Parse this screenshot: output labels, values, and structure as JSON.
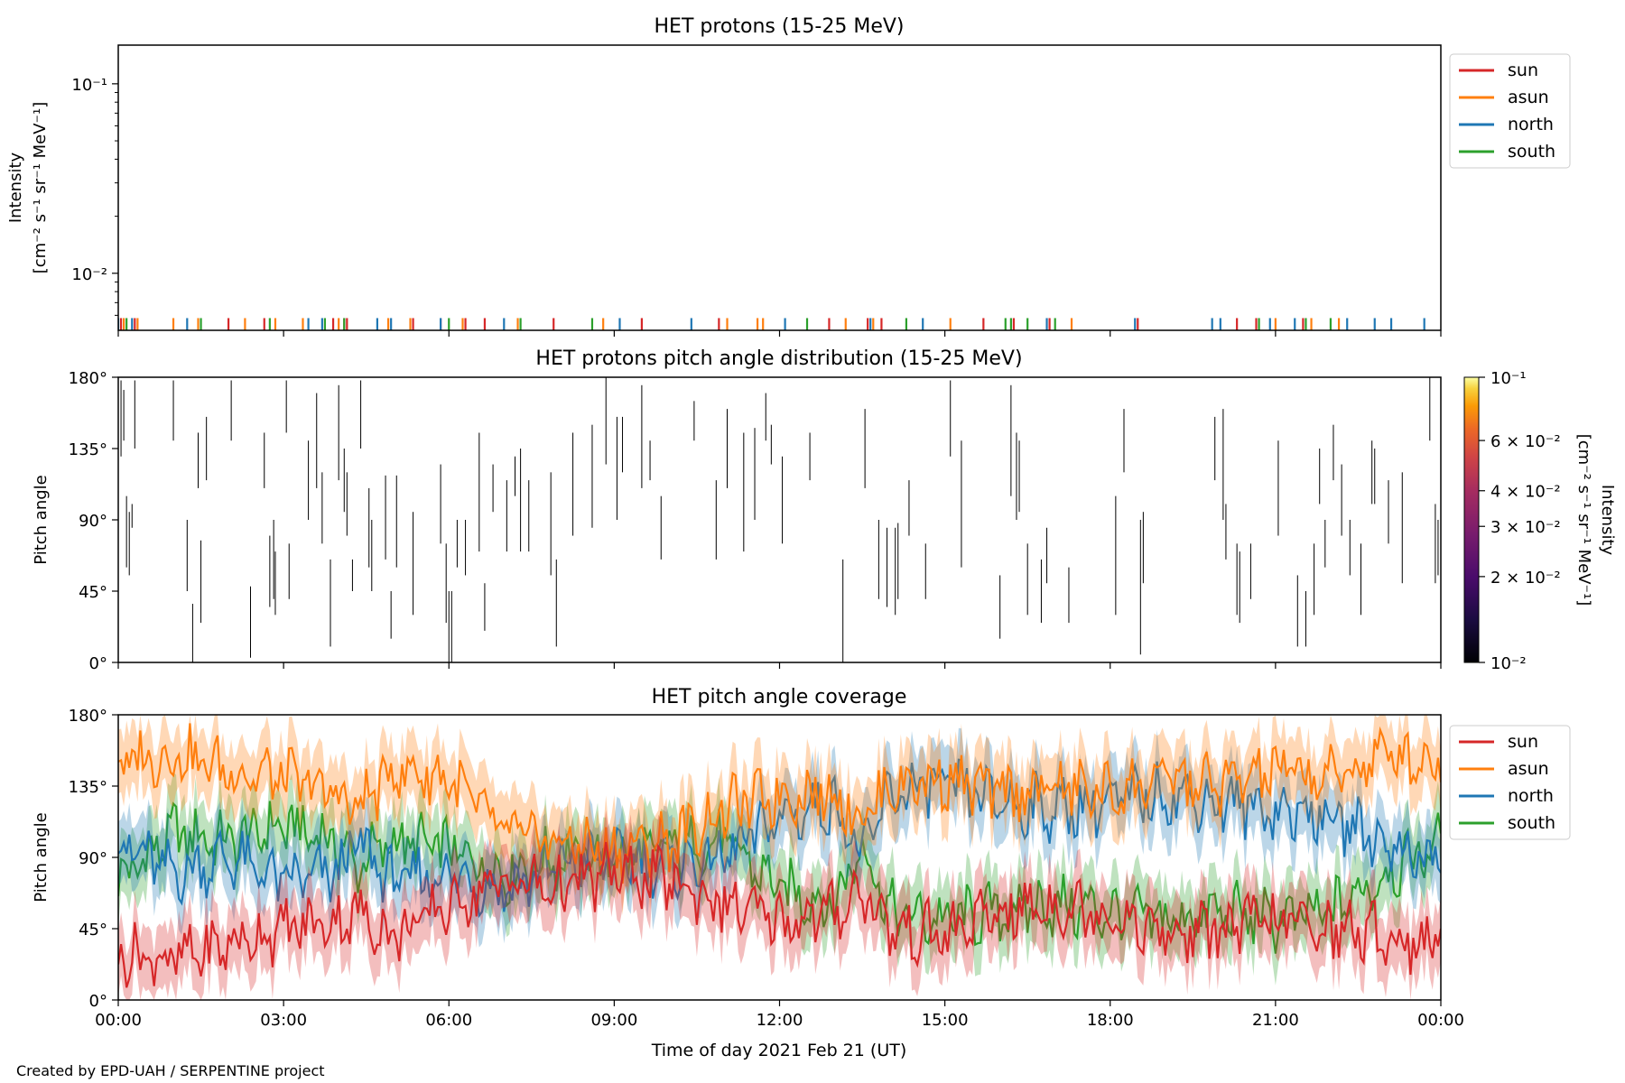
{
  "figure": {
    "credit": "Created by EPD-UAH / SERPENTINE project",
    "xlabel": "Time of day 2021 Feb 21 (UT)",
    "xticks": [
      "00:00",
      "03:00",
      "06:00",
      "09:00",
      "12:00",
      "15:00",
      "18:00",
      "21:00",
      "00:00"
    ]
  },
  "colors": {
    "sun": "#d62728",
    "asun": "#ff7f0e",
    "north": "#1f77b4",
    "south": "#2ca02c"
  },
  "chart_data": [
    {
      "type": "line",
      "title": "HET protons (15-25 MeV)",
      "ylabel_line1": "Intensity",
      "ylabel_line2": "[cm⁻² s⁻¹ sr⁻¹ MeV⁻¹]",
      "yscale": "log",
      "ylim": [
        0.005,
        0.16
      ],
      "ytick_labels": [
        "10⁻¹",
        "10⁻²"
      ],
      "ytick_values": [
        0.1,
        0.01
      ],
      "xlim_hours": [
        0,
        24
      ],
      "legend": {
        "placement": "outside-top-right",
        "entries": [
          "sun",
          "asun",
          "north",
          "south"
        ]
      },
      "note": "sparse single-count spikes near plot floor",
      "spikes": {
        "sun": [
          0.05,
          0.3,
          2.0,
          2.65,
          3.9,
          4.1,
          4.15,
          5.35,
          5.85,
          6.3,
          6.65,
          7.9,
          9.5,
          10.9,
          12.9,
          13.6,
          13.85,
          15.7,
          16.25,
          16.9,
          18.5,
          20.3,
          20.65,
          21.5
        ],
        "asun": [
          0.1,
          0.35,
          1.0,
          1.45,
          2.3,
          2.85,
          3.35,
          4.0,
          4.9,
          5.3,
          6.25,
          7.25,
          8.8,
          11.05,
          11.6,
          11.7,
          13.2,
          13.7,
          15.1,
          17.3,
          21.0,
          21.65,
          22.15
        ],
        "north": [
          0.0,
          0.25,
          1.25,
          3.45,
          3.7,
          4.7,
          4.95,
          5.85,
          7.0,
          9.1,
          10.4,
          12.1,
          13.65,
          14.6,
          16.85,
          18.45,
          19.85,
          20.0,
          20.9,
          21.35,
          22.3,
          22.8,
          23.1,
          23.7
        ],
        "south": [
          0.15,
          1.5,
          2.75,
          3.75,
          4.1,
          6.0,
          7.3,
          8.6,
          12.5,
          14.3,
          16.1,
          16.2,
          16.5,
          17.0,
          20.7,
          21.55,
          22.0
        ]
      }
    },
    {
      "type": "heatmap",
      "title": "HET protons pitch angle distribution (15-25 MeV)",
      "ylabel": "Pitch angle",
      "ylim": [
        0,
        180
      ],
      "ytick_labels": [
        "0°",
        "45°",
        "90°",
        "135°",
        "180°"
      ],
      "xlim_hours": [
        0,
        24
      ],
      "colorbar": {
        "label_line1": "Intensity",
        "label_line2": "[cm⁻² s⁻¹ sr⁻¹ MeV⁻¹]",
        "colormap": "inferno",
        "scale": "log",
        "range": [
          0.01,
          0.1
        ],
        "tick_labels": [
          "10⁻¹",
          "6 × 10⁻²",
          "4 × 10⁻²",
          "3 × 10⁻²",
          "2 × 10⁻²",
          "10⁻²"
        ],
        "tick_values": [
          0.1,
          0.06,
          0.04,
          0.03,
          0.02,
          0.01
        ]
      },
      "segments": [
        [
          0.05,
          130,
          178
        ],
        [
          0.1,
          140,
          172
        ],
        [
          0.15,
          60,
          105
        ],
        [
          0.2,
          55,
          95
        ],
        [
          0.25,
          85,
          100
        ],
        [
          0.3,
          135,
          178
        ],
        [
          1.0,
          140,
          178
        ],
        [
          1.25,
          45,
          90
        ],
        [
          1.35,
          0,
          37
        ],
        [
          1.5,
          25,
          77
        ],
        [
          1.45,
          110,
          145
        ],
        [
          1.6,
          115,
          155
        ],
        [
          2.05,
          140,
          178
        ],
        [
          2.4,
          3,
          48
        ],
        [
          2.65,
          110,
          145
        ],
        [
          2.75,
          35,
          80
        ],
        [
          2.82,
          40,
          90
        ],
        [
          2.85,
          30,
          70
        ],
        [
          3.05,
          145,
          178
        ],
        [
          3.1,
          40,
          75
        ],
        [
          3.45,
          90,
          140
        ],
        [
          3.6,
          110,
          170
        ],
        [
          3.7,
          75,
          120
        ],
        [
          3.85,
          10,
          65
        ],
        [
          4.0,
          115,
          175
        ],
        [
          4.1,
          95,
          135
        ],
        [
          4.15,
          80,
          120
        ],
        [
          4.25,
          45,
          65
        ],
        [
          4.4,
          135,
          178
        ],
        [
          4.55,
          60,
          110
        ],
        [
          4.6,
          45,
          90
        ],
        [
          4.85,
          65,
          118
        ],
        [
          4.95,
          15,
          45
        ],
        [
          5.05,
          60,
          118
        ],
        [
          5.35,
          30,
          95
        ],
        [
          5.85,
          75,
          125
        ],
        [
          5.95,
          25,
          75
        ],
        [
          6.0,
          0,
          45
        ],
        [
          6.05,
          0,
          45
        ],
        [
          6.15,
          60,
          90
        ],
        [
          6.3,
          55,
          90
        ],
        [
          6.55,
          70,
          145
        ],
        [
          6.65,
          20,
          50
        ],
        [
          6.8,
          95,
          125
        ],
        [
          7.05,
          70,
          115
        ],
        [
          7.2,
          105,
          130
        ],
        [
          7.3,
          70,
          135
        ],
        [
          7.45,
          70,
          115
        ],
        [
          7.85,
          55,
          120
        ],
        [
          7.95,
          10,
          65
        ],
        [
          8.25,
          80,
          145
        ],
        [
          8.6,
          85,
          150
        ],
        [
          8.85,
          125,
          180
        ],
        [
          9.05,
          90,
          155
        ],
        [
          9.15,
          120,
          155
        ],
        [
          9.5,
          110,
          175
        ],
        [
          9.65,
          115,
          140
        ],
        [
          9.85,
          65,
          105
        ],
        [
          10.45,
          140,
          165
        ],
        [
          10.85,
          65,
          115
        ],
        [
          11.05,
          110,
          160
        ],
        [
          11.35,
          70,
          145
        ],
        [
          11.55,
          90,
          148
        ],
        [
          11.75,
          140,
          170
        ],
        [
          11.85,
          125,
          150
        ],
        [
          12.05,
          75,
          130
        ],
        [
          12.55,
          115,
          145
        ],
        [
          13.15,
          0,
          65
        ],
        [
          13.55,
          110,
          160
        ],
        [
          13.8,
          40,
          90
        ],
        [
          13.95,
          35,
          85
        ],
        [
          14.1,
          30,
          85
        ],
        [
          14.15,
          40,
          88
        ],
        [
          14.35,
          80,
          115
        ],
        [
          14.65,
          40,
          75
        ],
        [
          15.1,
          130,
          178
        ],
        [
          15.3,
          60,
          140
        ],
        [
          16.0,
          15,
          55
        ],
        [
          16.2,
          105,
          175
        ],
        [
          16.3,
          90,
          145
        ],
        [
          16.35,
          95,
          140
        ],
        [
          16.5,
          30,
          75
        ],
        [
          16.75,
          25,
          65
        ],
        [
          16.85,
          50,
          85
        ],
        [
          17.25,
          25,
          60
        ],
        [
          18.1,
          30,
          105
        ],
        [
          18.25,
          120,
          160
        ],
        [
          18.55,
          5,
          90
        ],
        [
          18.6,
          50,
          95
        ],
        [
          19.9,
          115,
          155
        ],
        [
          20.05,
          90,
          160
        ],
        [
          20.1,
          65,
          100
        ],
        [
          20.3,
          30,
          75
        ],
        [
          20.35,
          25,
          70
        ],
        [
          20.55,
          40,
          75
        ],
        [
          21.05,
          80,
          140
        ],
        [
          21.4,
          10,
          55
        ],
        [
          21.55,
          10,
          45
        ],
        [
          21.7,
          30,
          75
        ],
        [
          21.8,
          100,
          135
        ],
        [
          21.9,
          60,
          90
        ],
        [
          22.05,
          115,
          150
        ],
        [
          22.2,
          80,
          125
        ],
        [
          22.35,
          55,
          90
        ],
        [
          22.55,
          30,
          75
        ],
        [
          22.75,
          100,
          140
        ],
        [
          22.8,
          100,
          135
        ],
        [
          23.05,
          75,
          115
        ],
        [
          23.3,
          50,
          120
        ],
        [
          23.8,
          140,
          180
        ],
        [
          23.9,
          50,
          100
        ],
        [
          23.95,
          55,
          90
        ]
      ]
    },
    {
      "type": "line",
      "title": "HET pitch angle coverage",
      "ylabel": "Pitch angle",
      "ylim": [
        0,
        180
      ],
      "ytick_labels": [
        "0°",
        "45°",
        "90°",
        "135°",
        "180°"
      ],
      "xlim_hours": [
        0,
        24
      ],
      "legend": {
        "placement": "outside-top-right",
        "entries": [
          "sun",
          "asun",
          "north",
          "south"
        ]
      },
      "series": [
        {
          "name": "sun",
          "x": [
            0,
            1,
            2,
            3,
            4,
            4.3,
            5,
            6,
            7,
            8,
            9,
            10,
            11,
            12,
            13,
            13.5,
            14,
            15,
            16,
            17,
            18,
            19,
            20,
            21,
            22,
            23,
            24
          ],
          "y": [
            30,
            25,
            35,
            45,
            50,
            55,
            40,
            60,
            75,
            70,
            80,
            75,
            60,
            50,
            55,
            70,
            45,
            40,
            55,
            60,
            55,
            40,
            45,
            50,
            45,
            40,
            35
          ]
        },
        {
          "name": "asun",
          "x": [
            0,
            1,
            2,
            3,
            4,
            4.3,
            5,
            6,
            7,
            8,
            9,
            10,
            11,
            12,
            13,
            13.5,
            14,
            15,
            16,
            17,
            18,
            19,
            20,
            21,
            22,
            23,
            24
          ],
          "y": [
            150,
            155,
            145,
            140,
            130,
            120,
            145,
            140,
            105,
            100,
            95,
            100,
            120,
            130,
            130,
            115,
            135,
            140,
            130,
            135,
            130,
            140,
            135,
            145,
            140,
            155,
            150
          ]
        },
        {
          "name": "north",
          "x": [
            0,
            1,
            2,
            3,
            4,
            4.3,
            5,
            6,
            7,
            8,
            9,
            10,
            11,
            12,
            13,
            13.5,
            14,
            15,
            16,
            17,
            18,
            19,
            20,
            21,
            22,
            23,
            24
          ],
          "y": [
            100,
            80,
            90,
            75,
            80,
            100,
            75,
            80,
            70,
            85,
            90,
            85,
            90,
            115,
            125,
            90,
            130,
            135,
            125,
            120,
            125,
            130,
            125,
            120,
            115,
            100,
            85
          ]
        },
        {
          "name": "south",
          "x": [
            0,
            1,
            2,
            3,
            4,
            4.3,
            5,
            6,
            7,
            8,
            9,
            10,
            11,
            12,
            13,
            13.5,
            14,
            15,
            16,
            17,
            18,
            19,
            20,
            21,
            22,
            23,
            24
          ],
          "y": [
            75,
            105,
            100,
            110,
            100,
            85,
            100,
            95,
            80,
            90,
            90,
            95,
            100,
            70,
            60,
            100,
            55,
            50,
            55,
            60,
            55,
            50,
            55,
            50,
            55,
            80,
            100
          ]
        }
      ],
      "band_halfwidth_deg": 20
    }
  ]
}
